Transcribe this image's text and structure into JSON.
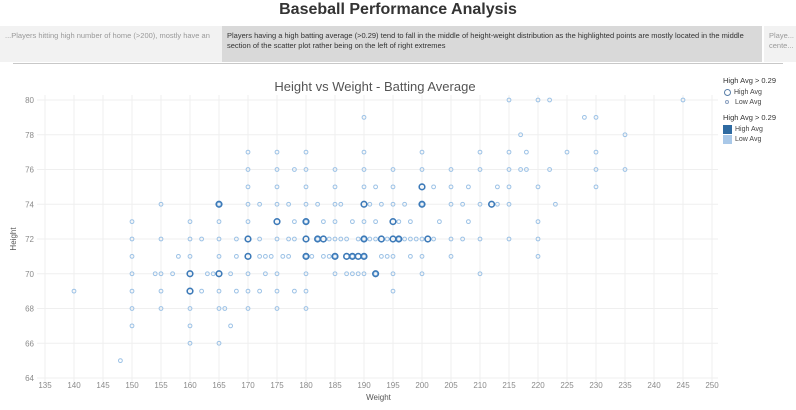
{
  "page": {
    "title": "Baseball Performance Analysis"
  },
  "captions": {
    "previous": "...Players hitting high number of home (>200), mostly have an",
    "current": "Players having a high batting average (>0.29) tend to fall in the middle of height-weight distribution as the highlighted points are mostly located in the middle section of the scatter plot rather being on the left of right extremes",
    "next": "Playe... cente..."
  },
  "legend": {
    "size_title": "High Avg > 0.29",
    "size_high": "High Avg",
    "size_low": "Low Avg",
    "color_title": "High Avg > 0.29",
    "color_high": "High Avg",
    "color_low": "Low Avg"
  },
  "colors": {
    "high_stroke": "#3d7ab8",
    "low_stroke": "#9cc2e6",
    "grid": "#efefef",
    "axis_text": "#8a8a8a"
  },
  "chart_data": {
    "type": "scatter",
    "title": "Height vs Weight - Batting Average",
    "xlabel": "Weight",
    "ylabel": "Height",
    "xlim": [
      135,
      250
    ],
    "ylim": [
      64,
      80
    ],
    "xticks": [
      135,
      140,
      145,
      150,
      155,
      160,
      165,
      170,
      175,
      180,
      185,
      190,
      195,
      200,
      205,
      210,
      215,
      220,
      225,
      230,
      235,
      240,
      245,
      250
    ],
    "yticks": [
      64,
      66,
      68,
      70,
      72,
      74,
      76,
      78,
      80
    ],
    "series": [
      {
        "name": "Low Avg",
        "points": [
          [
            140,
            69
          ],
          [
            148,
            65
          ],
          [
            150,
            67
          ],
          [
            150,
            68
          ],
          [
            150,
            69
          ],
          [
            150,
            70
          ],
          [
            150,
            71
          ],
          [
            150,
            72
          ],
          [
            150,
            73
          ],
          [
            154,
            70
          ],
          [
            155,
            68
          ],
          [
            155,
            69
          ],
          [
            155,
            70
          ],
          [
            155,
            72
          ],
          [
            155,
            74
          ],
          [
            157,
            70
          ],
          [
            158,
            71
          ],
          [
            160,
            66
          ],
          [
            160,
            67
          ],
          [
            160,
            68
          ],
          [
            160,
            71
          ],
          [
            160,
            72
          ],
          [
            160,
            73
          ],
          [
            162,
            69
          ],
          [
            162,
            72
          ],
          [
            163,
            70
          ],
          [
            164,
            70
          ],
          [
            165,
            66
          ],
          [
            165,
            68
          ],
          [
            165,
            69
          ],
          [
            165,
            71
          ],
          [
            165,
            72
          ],
          [
            165,
            73
          ],
          [
            165,
            74
          ],
          [
            166,
            68
          ],
          [
            167,
            67
          ],
          [
            167,
            70
          ],
          [
            168,
            69
          ],
          [
            168,
            71
          ],
          [
            168,
            72
          ],
          [
            170,
            68
          ],
          [
            170,
            69
          ],
          [
            170,
            70
          ],
          [
            170,
            73
          ],
          [
            170,
            74
          ],
          [
            170,
            75
          ],
          [
            170,
            76
          ],
          [
            170,
            77
          ],
          [
            172,
            69
          ],
          [
            172,
            71
          ],
          [
            172,
            72
          ],
          [
            172,
            74
          ],
          [
            173,
            70
          ],
          [
            173,
            71
          ],
          [
            174,
            71
          ],
          [
            175,
            68
          ],
          [
            175,
            69
          ],
          [
            175,
            70
          ],
          [
            175,
            72
          ],
          [
            175,
            74
          ],
          [
            175,
            75
          ],
          [
            175,
            76
          ],
          [
            175,
            77
          ],
          [
            176,
            71
          ],
          [
            177,
            71
          ],
          [
            177,
            72
          ],
          [
            177,
            74
          ],
          [
            178,
            69
          ],
          [
            178,
            72
          ],
          [
            178,
            73
          ],
          [
            178,
            76
          ],
          [
            180,
            68
          ],
          [
            180,
            69
          ],
          [
            180,
            70
          ],
          [
            180,
            71
          ],
          [
            180,
            73
          ],
          [
            180,
            74
          ],
          [
            180,
            75
          ],
          [
            180,
            76
          ],
          [
            180,
            77
          ],
          [
            181,
            71
          ],
          [
            182,
            72
          ],
          [
            182,
            74
          ],
          [
            183,
            71
          ],
          [
            183,
            73
          ],
          [
            184,
            71
          ],
          [
            184,
            72
          ],
          [
            185,
            70
          ],
          [
            185,
            71
          ],
          [
            185,
            72
          ],
          [
            185,
            73
          ],
          [
            185,
            74
          ],
          [
            185,
            75
          ],
          [
            185,
            76
          ],
          [
            186,
            72
          ],
          [
            186,
            74
          ],
          [
            187,
            70
          ],
          [
            187,
            72
          ],
          [
            188,
            70
          ],
          [
            188,
            71
          ],
          [
            188,
            73
          ],
          [
            189,
            70
          ],
          [
            189,
            72
          ],
          [
            190,
            70
          ],
          [
            190,
            71
          ],
          [
            190,
            72
          ],
          [
            190,
            73
          ],
          [
            190,
            75
          ],
          [
            190,
            76
          ],
          [
            190,
            77
          ],
          [
            190,
            79
          ],
          [
            191,
            72
          ],
          [
            191,
            74
          ],
          [
            192,
            70
          ],
          [
            192,
            72
          ],
          [
            192,
            73
          ],
          [
            192,
            75
          ],
          [
            193,
            71
          ],
          [
            193,
            74
          ],
          [
            194,
            71
          ],
          [
            194,
            72
          ],
          [
            195,
            69
          ],
          [
            195,
            70
          ],
          [
            195,
            71
          ],
          [
            195,
            74
          ],
          [
            195,
            75
          ],
          [
            195,
            76
          ],
          [
            196,
            72
          ],
          [
            196,
            73
          ],
          [
            197,
            72
          ],
          [
            197,
            74
          ],
          [
            198,
            71
          ],
          [
            198,
            72
          ],
          [
            198,
            73
          ],
          [
            199,
            72
          ],
          [
            200,
            70
          ],
          [
            200,
            71
          ],
          [
            200,
            72
          ],
          [
            200,
            74
          ],
          [
            200,
            76
          ],
          [
            200,
            77
          ],
          [
            202,
            72
          ],
          [
            202,
            75
          ],
          [
            203,
            73
          ],
          [
            205,
            71
          ],
          [
            205,
            72
          ],
          [
            205,
            74
          ],
          [
            205,
            75
          ],
          [
            205,
            76
          ],
          [
            207,
            72
          ],
          [
            207,
            74
          ],
          [
            208,
            73
          ],
          [
            208,
            75
          ],
          [
            210,
            70
          ],
          [
            210,
            72
          ],
          [
            210,
            74
          ],
          [
            210,
            76
          ],
          [
            210,
            77
          ],
          [
            213,
            75
          ],
          [
            215,
            72
          ],
          [
            215,
            74
          ],
          [
            215,
            75
          ],
          [
            215,
            76
          ],
          [
            215,
            77
          ],
          [
            215,
            80
          ],
          [
            217,
            76
          ],
          [
            218,
            76
          ],
          [
            218,
            77
          ],
          [
            220,
            71
          ],
          [
            220,
            72
          ],
          [
            220,
            73
          ],
          [
            220,
            75
          ],
          [
            220,
            80
          ],
          [
            222,
            76
          ],
          [
            223,
            74
          ],
          [
            225,
            77
          ],
          [
            228,
            79
          ],
          [
            230,
            75
          ],
          [
            230,
            76
          ],
          [
            230,
            77
          ],
          [
            230,
            79
          ],
          [
            235,
            76
          ],
          [
            235,
            78
          ],
          [
            245,
            80
          ],
          [
            222,
            80
          ],
          [
            217,
            78
          ],
          [
            213,
            74
          ]
        ]
      },
      {
        "name": "High Avg",
        "points": [
          [
            160,
            69
          ],
          [
            160,
            70
          ],
          [
            165,
            70
          ],
          [
            165,
            74
          ],
          [
            170,
            71
          ],
          [
            170,
            72
          ],
          [
            175,
            73
          ],
          [
            180,
            71
          ],
          [
            180,
            72
          ],
          [
            180,
            73
          ],
          [
            182,
            72
          ],
          [
            185,
            71
          ],
          [
            187,
            71
          ],
          [
            188,
            71
          ],
          [
            190,
            72
          ],
          [
            190,
            74
          ],
          [
            190,
            71
          ],
          [
            192,
            70
          ],
          [
            193,
            72
          ],
          [
            195,
            72
          ],
          [
            195,
            73
          ],
          [
            196,
            72
          ],
          [
            200,
            74
          ],
          [
            200,
            75
          ],
          [
            201,
            72
          ],
          [
            212,
            74
          ],
          [
            183,
            72
          ],
          [
            189,
            71
          ]
        ]
      }
    ]
  }
}
